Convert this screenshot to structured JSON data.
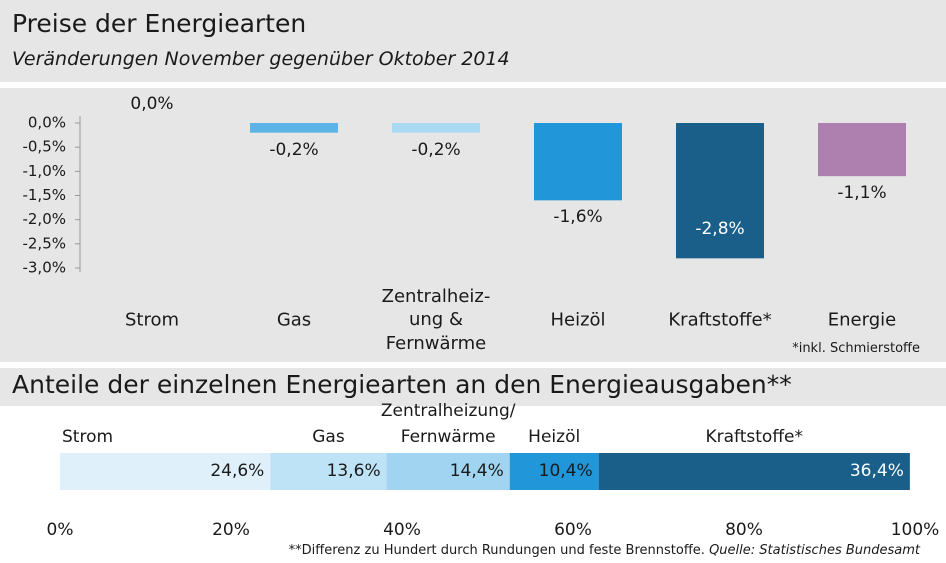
{
  "chart_data": [
    {
      "type": "bar",
      "title": "Preise der  Energiearten",
      "subtitle": "Veränderungen November gegenüber Oktober 2014",
      "categories": [
        "Strom",
        "Gas",
        "Zentralheiz-\nung &\nFernwärme",
        "Heizöl",
        "Kraftstoffe*",
        "Energie"
      ],
      "values": [
        0,
        -0.2,
        -0.2,
        -1.6,
        -2.8,
        -1.1
      ],
      "value_labels": [
        "0,0%",
        "-0,2%",
        "-0,2%",
        "-1,6%",
        "-2,8%",
        "-1,1%"
      ],
      "colors": [
        "#dff0fa",
        "#5bb4e5",
        "#a9daf2",
        "#2196d8",
        "#1a5f8a",
        "#ae80b0"
      ],
      "ylim": [
        -3,
        0
      ],
      "yticks": [
        {
          "value": 0,
          "label": "0,0%"
        },
        {
          "value": -0.5,
          "label": "-0,5%"
        },
        {
          "value": -1,
          "label": "-1,0%"
        },
        {
          "value": -1.5,
          "label": "-1,5%"
        },
        {
          "value": -2,
          "label": "-2,0%"
        },
        {
          "value": -2.5,
          "label": "-2,5%"
        },
        {
          "value": -3,
          "label": "-3,0%"
        }
      ],
      "note": "*inkl. Schmierstoffe"
    },
    {
      "type": "stacked_bar",
      "orientation": "horizontal",
      "title": "Anteile der einzelnen Energiearten an den Energieausgaben**",
      "series": [
        {
          "name": "Strom",
          "color": "#dff0fa",
          "values": [
            24.6
          ],
          "value_labels": [
            "24,6%"
          ]
        },
        {
          "name": "Gas",
          "color": "#bfe3f6",
          "values": [
            13.6
          ],
          "value_labels": [
            "13,6%"
          ]
        },
        {
          "name": "Zentralheizung/\nFernwärme",
          "color": "#a0d4f0",
          "values": [
            14.4
          ],
          "value_labels": [
            "14,4%"
          ]
        },
        {
          "name": "Heizöl",
          "color": "#2196d8",
          "values": [
            10.4
          ],
          "value_labels": [
            "10,4%"
          ]
        },
        {
          "name": "Kraftstoffe*",
          "color": "#1a5f8a",
          "values": [
            36.4
          ],
          "value_labels": [
            "36,4%"
          ]
        }
      ],
      "xlim": [
        0,
        100
      ],
      "xticks": [
        {
          "value": 0,
          "label": "0%"
        },
        {
          "value": 20,
          "label": "20%"
        },
        {
          "value": 40,
          "label": "40%"
        },
        {
          "value": 60,
          "label": "60%"
        },
        {
          "value": 80,
          "label": "80%"
        },
        {
          "value": 100,
          "label": "100%"
        }
      ],
      "note": "**Differenz zu Hundert durch Rundungen und feste Brennstoffe.",
      "source": "Quelle: Statistisches Bundesamt"
    }
  ]
}
